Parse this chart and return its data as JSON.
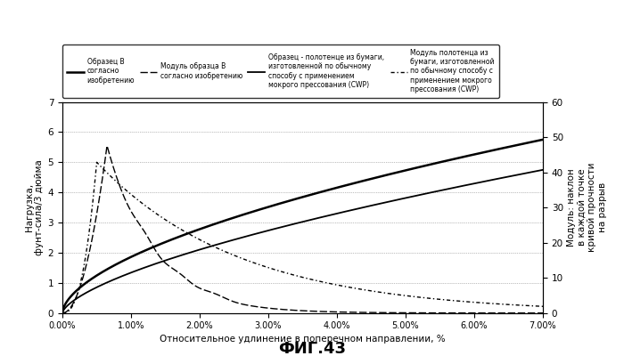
{
  "title": "ФИГ.43",
  "xlabel": "Относительное удлинение в поперечном направлении, %",
  "ylabel_left": "Нагрузка,\nфунт-сила/3 дюйма",
  "ylabel_right": "Модуль: наклон\nв каждой точке\nкривой прочности\nна разрыв",
  "xlim": [
    0.0,
    7.0
  ],
  "ylim_left": [
    0,
    7
  ],
  "ylim_right": [
    0,
    60
  ],
  "background_color": "#ffffff",
  "legend_col1": "Образец B\nсогласно\nизобретению",
  "legend_col2": "Модуль образца B\nсогласно изобретению",
  "legend_col3": "Образец - полотенце из бумаги,\nизготовленной по обычному\nспособу с применением\nмокрого прессования (CWP)",
  "legend_col4": "Модуль полотенца из\nбумаги, изготовленной\nпо обычному способу с\nприменением мокрого\nпрессования (CWP)"
}
